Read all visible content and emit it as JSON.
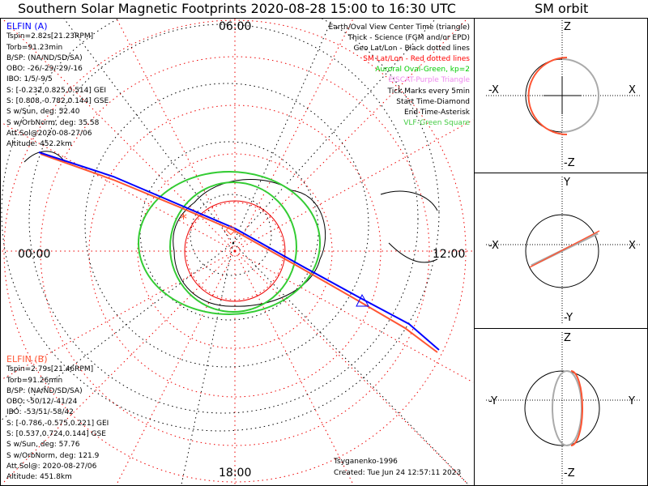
{
  "title": "Southern Solar Magnetic Footprints 2020-08-28 15:00 to 16:30 UTC",
  "orbit_title": "SM orbit",
  "map": {
    "hour_labels": {
      "top": "06:00",
      "bottom": "18:00",
      "left": "00:00",
      "right": "12:00"
    }
  },
  "elfin_a": {
    "name": "ELFIN (A)",
    "color": "#0000ff",
    "lines": [
      "Tspin=2.82s[21.23RPM]",
      "Torb=91.23min",
      "B/SP: (NA/ND/SD/SA)",
      "OBO: -26/-29/-29/-16",
      "IBO: 1/5/-9/5",
      "S: [-0.232,0.825,0.514] GEI",
      "S: [0.808,-0.782,0.144] GSE",
      "S w/Sun, deg: 52.40",
      "S w/OrbNorm, deg: 35.58",
      "Att.Sol@2020-08-27/06",
      "Altitude: 452.2km"
    ]
  },
  "elfin_b": {
    "name": "ELFIN (B)",
    "color": "#ff5533",
    "lines": [
      "Tspin=2.79s[21.46RPM]",
      "Torb=91.26min",
      "B/SP: (NA/ND/SD/SA)",
      "OBO: -50/12/-41/24",
      "IBO: -53/51/-58/42",
      "S: [-0.786,-0.575,0.221] GEI",
      "S: [0.537,0.724,0.144] GSE",
      "S w/Sun, deg: 57.76",
      "S w/OrbNorm, deg: 121.9",
      "Att.Sol@: 2020-08-27/06",
      "Altitude: 451.8km"
    ]
  },
  "legend": [
    {
      "text": "Earth/Oval View Center Time (triangle)",
      "color": "#000000"
    },
    {
      "text": "Thick - Science (FGM and/or EPD)",
      "color": "#000000"
    },
    {
      "text": "Geo Lat/Lon - Black dotted lines",
      "color": "#000000"
    },
    {
      "text": "SM Lat/Lon - Red dotted lines",
      "color": "#ff0000"
    },
    {
      "text": "Auroral Oval-Green, kp=2",
      "color": "#00cc00"
    },
    {
      "text": "EISCAT-Purple Triangle",
      "color": "#ee88ee"
    },
    {
      "text": "Tick Marks every 5min",
      "color": "#000000"
    },
    {
      "text": "Start Time-Diamond",
      "color": "#000000"
    },
    {
      "text": "End Time-Asterisk",
      "color": "#000000"
    },
    {
      "text": "VLF-Green Square",
      "color": "#44cc44"
    }
  ],
  "credit": "Tsyganenko-1996",
  "created": "Created: Tue Jun 24 12:57:11 2023",
  "orbit_panels": [
    {
      "top": "Z",
      "bottom": "-Z",
      "left": "-X",
      "right": "X"
    },
    {
      "top": "Y",
      "bottom": "-Y",
      "left": "-X",
      "right": "X"
    },
    {
      "top": "Z",
      "bottom": "-Z",
      "left": "-Y",
      "right": "Y"
    }
  ]
}
